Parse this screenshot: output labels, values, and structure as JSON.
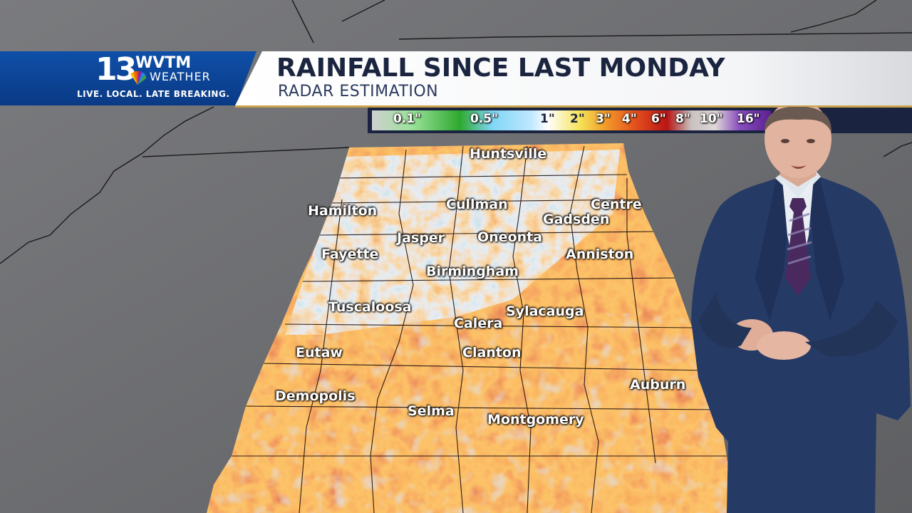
{
  "header": {
    "logo_number": "13",
    "logo_callsign": "WVTM",
    "logo_weather": "WEATHER",
    "logo_tagline": "LIVE. LOCAL. LATE BREAKING.",
    "title": "RAINFALL SINCE LAST MONDAY",
    "subtitle": "RADAR ESTIMATION"
  },
  "legend": {
    "labels": [
      "0.1\"",
      "0.5\"",
      "1\"",
      "2\"",
      "3\"",
      "4\"",
      "6\"",
      "8\"",
      "10\"",
      "16\""
    ],
    "label_colors": [
      "#ffffff",
      "#ffffff",
      "#1c2540",
      "#1c2540",
      "#ffffff",
      "#ffffff",
      "#ffffff",
      "#ffffff",
      "#ffffff",
      "#ffffff"
    ]
  },
  "map": {
    "cities": [
      {
        "name": "Huntsville"
      },
      {
        "name": "Cullman"
      },
      {
        "name": "Hamilton"
      },
      {
        "name": "Centre"
      },
      {
        "name": "Gadsden"
      },
      {
        "name": "Jasper"
      },
      {
        "name": "Oneonta"
      },
      {
        "name": "Fayette"
      },
      {
        "name": "Anniston"
      },
      {
        "name": "Birmingham"
      },
      {
        "name": "Tuscaloosa"
      },
      {
        "name": "Sylacauga"
      },
      {
        "name": "Calera"
      },
      {
        "name": "Eutaw"
      },
      {
        "name": "Clanton"
      },
      {
        "name": "Auburn"
      },
      {
        "name": "Demopolis"
      },
      {
        "name": "Selma"
      },
      {
        "name": "Montgomery"
      }
    ]
  },
  "colors": {
    "banner_blue": "#0a3a85",
    "title_navy": "#1c2540",
    "accent_gold": "#c9a24a",
    "rain_red": "#c4281a",
    "rain_orange": "#e8661e",
    "rain_blue": "#a8d8f0",
    "rain_green": "#3bb04a"
  }
}
